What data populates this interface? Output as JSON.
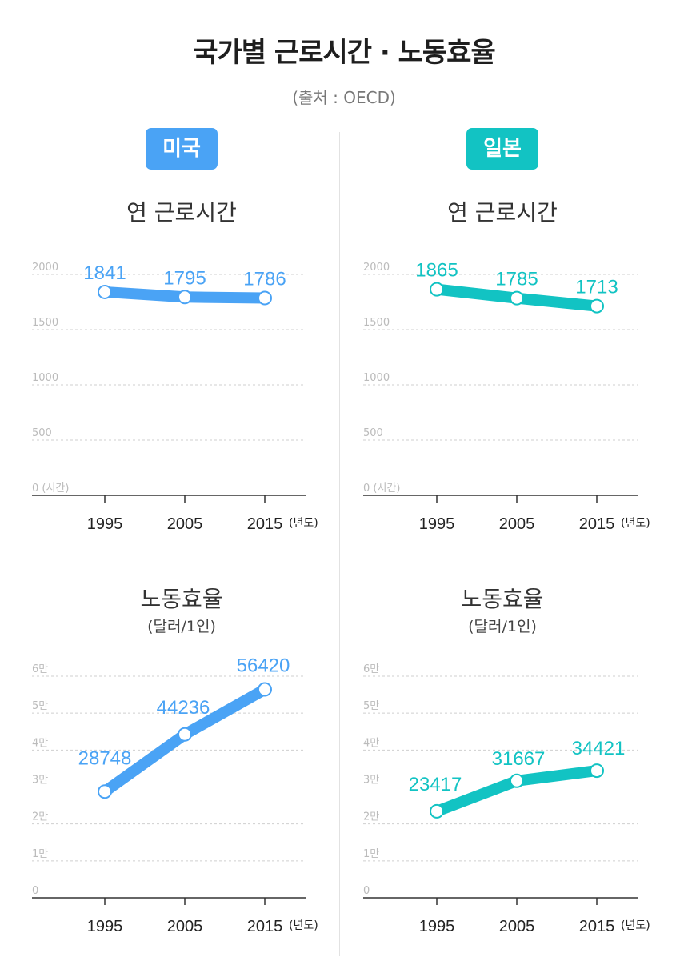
{
  "title": "국가별 근로시간 · 노동효율",
  "source": "(출처 : OECD)",
  "colors": {
    "usa": "#4aa3f5",
    "japan": "#12c3c3"
  },
  "countries": [
    {
      "id": "usa",
      "badge": "미국",
      "color": "#4aa3f5"
    },
    {
      "id": "japan",
      "badge": "일본",
      "color": "#12c3c3"
    }
  ],
  "panels": {
    "hours_title": "연 근로시간",
    "efficiency_title": "노동효율",
    "efficiency_unit": "(달러/1인)",
    "x_unit": "(년도)"
  },
  "chart_data": [
    {
      "type": "line",
      "country": "미국",
      "title": "연 근로시간",
      "x": [
        "1995",
        "2005",
        "2015"
      ],
      "series": [
        {
          "values": [
            1841,
            1795,
            1786
          ]
        }
      ],
      "ylim": [
        0,
        2000
      ],
      "yticks": [
        0,
        500,
        1000,
        1500,
        2000
      ],
      "ytick_labels": [
        "0 (시간)",
        "500",
        "1000",
        "1500",
        "2000"
      ],
      "grid": true
    },
    {
      "type": "line",
      "country": "일본",
      "title": "연 근로시간",
      "x": [
        "1995",
        "2005",
        "2015"
      ],
      "series": [
        {
          "values": [
            1865,
            1785,
            1713
          ]
        }
      ],
      "ylim": [
        0,
        2000
      ],
      "yticks": [
        0,
        500,
        1000,
        1500,
        2000
      ],
      "ytick_labels": [
        "0 (시간)",
        "500",
        "1000",
        "1500",
        "2000"
      ],
      "grid": true
    },
    {
      "type": "line",
      "country": "미국",
      "title": "노동효율",
      "subtitle": "(달러/1인)",
      "x": [
        "1995",
        "2005",
        "2015"
      ],
      "series": [
        {
          "values": [
            28748,
            44236,
            56420
          ]
        }
      ],
      "ylim": [
        0,
        60000
      ],
      "yticks": [
        0,
        10000,
        20000,
        30000,
        40000,
        50000,
        60000
      ],
      "ytick_labels": [
        "0",
        "1만",
        "2만",
        "3만",
        "4만",
        "5만",
        "6만"
      ],
      "grid": true
    },
    {
      "type": "line",
      "country": "일본",
      "title": "노동효율",
      "subtitle": "(달러/1인)",
      "x": [
        "1995",
        "2005",
        "2015"
      ],
      "series": [
        {
          "values": [
            23417,
            31667,
            34421
          ]
        }
      ],
      "ylim": [
        0,
        60000
      ],
      "yticks": [
        0,
        10000,
        20000,
        30000,
        40000,
        50000,
        60000
      ],
      "ytick_labels": [
        "0",
        "1만",
        "2만",
        "3만",
        "4만",
        "5만",
        "6만"
      ],
      "grid": true
    }
  ]
}
